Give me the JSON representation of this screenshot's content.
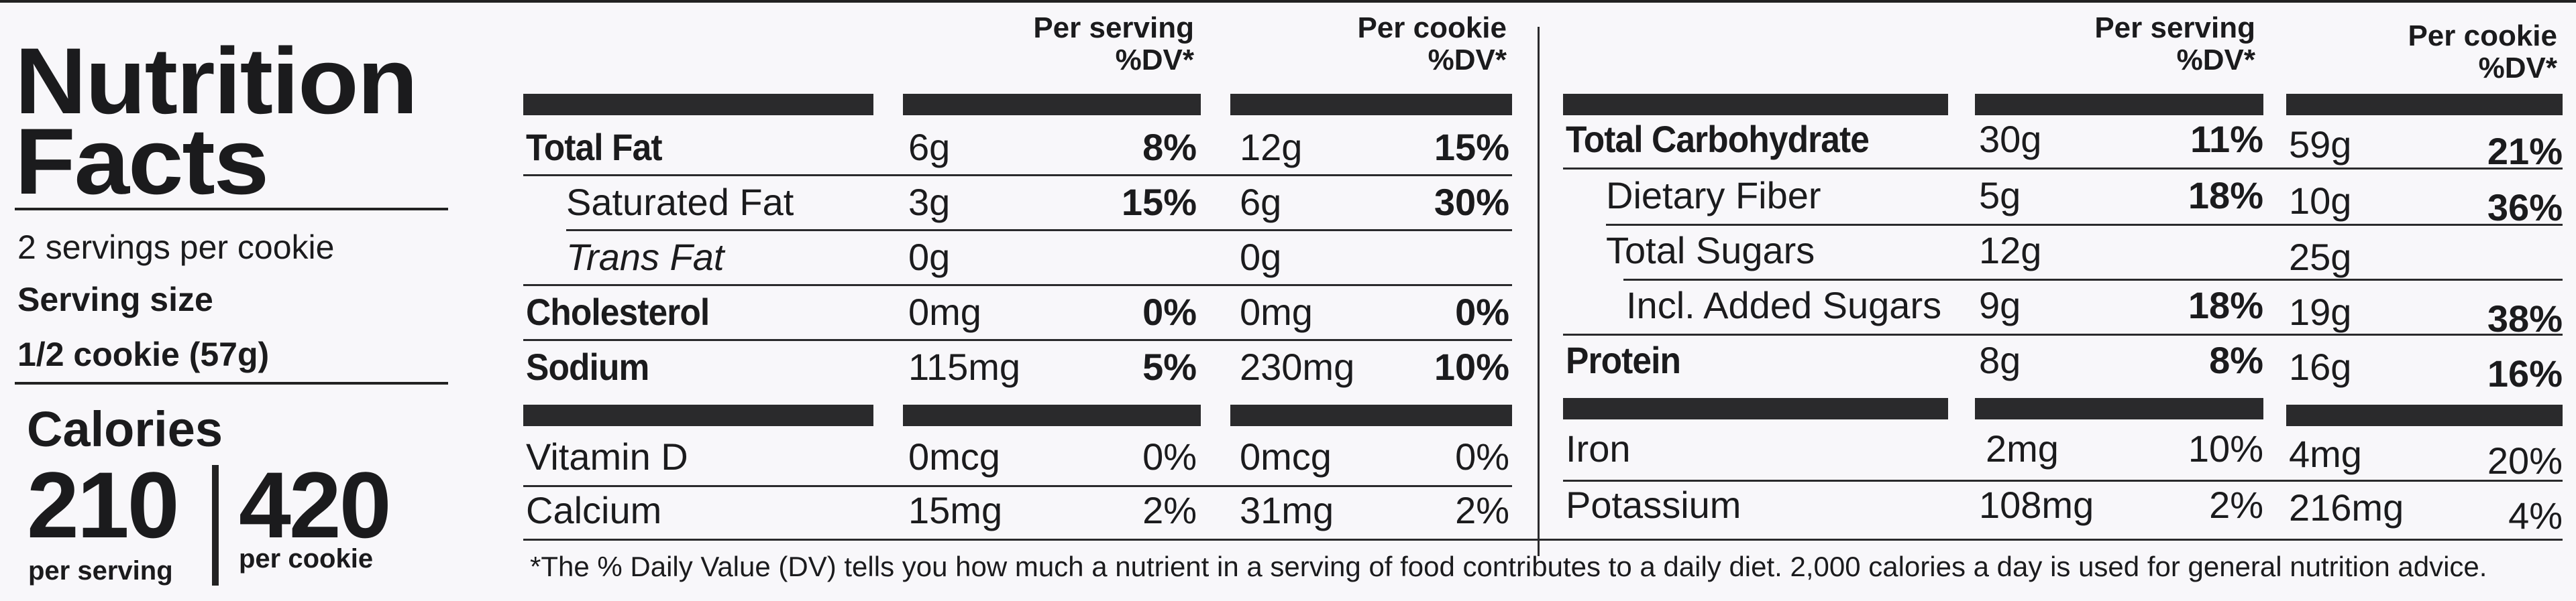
{
  "title": {
    "line1": "Nutrition",
    "line2": "Facts"
  },
  "servings": {
    "per_container": "2 servings per cookie",
    "size_label": "Serving size",
    "size_value": "1/2 cookie (57g)"
  },
  "calories": {
    "label": "Calories",
    "per_serving_value": "210",
    "per_serving_label": "per serving",
    "per_cookie_value": "420",
    "per_cookie_label": "per cookie"
  },
  "headers": {
    "left_serving": [
      "Per serving",
      "%DV*"
    ],
    "left_cookie": [
      "Per cookie",
      "%DV*"
    ],
    "right_serving": [
      "Per serving",
      "%DV*"
    ],
    "right_cookie": [
      "Per cookie",
      "%DV*"
    ]
  },
  "left_rows": [
    {
      "name": "Total Fat",
      "a": "6g",
      "ap": "8%",
      "b": "12g",
      "bp": "15%"
    },
    {
      "name": "Saturated Fat",
      "a": "3g",
      "ap": "15%",
      "b": "6g",
      "bp": "30%"
    },
    {
      "name": "Trans Fat",
      "a": "0g",
      "ap": "",
      "b": "0g",
      "bp": ""
    },
    {
      "name": "Cholesterol",
      "a": "0mg",
      "ap": "0%",
      "b": "0mg",
      "bp": "0%"
    },
    {
      "name": "Sodium",
      "a": "115mg",
      "ap": "5%",
      "b": "230mg",
      "bp": "10%"
    },
    {
      "name": "Vitamin D",
      "a": "0mcg",
      "ap": "0%",
      "b": "0mcg",
      "bp": "0%"
    },
    {
      "name": "Calcium",
      "a": "15mg",
      "ap": "2%",
      "b": "31mg",
      "bp": "2%"
    }
  ],
  "right_rows": [
    {
      "name": "Total Carbohydrate",
      "a": "30g",
      "ap": "11%",
      "b": "59g",
      "bp": "21%"
    },
    {
      "name": "Dietary Fiber",
      "a": "5g",
      "ap": "18%",
      "b": "10g",
      "bp": "36%"
    },
    {
      "name": "Total Sugars",
      "a": "12g",
      "ap": "",
      "b": "25g",
      "bp": ""
    },
    {
      "name": "Incl. Added Sugars",
      "a": "9g",
      "ap": "18%",
      "b": "19g",
      "bp": "38%"
    },
    {
      "name": "Protein",
      "a": "8g",
      "ap": "8%",
      "b": "16g",
      "bp": "16%"
    },
    {
      "name": "Iron",
      "a": "2mg",
      "ap": "10%",
      "b": "4mg",
      "bp": "20%"
    },
    {
      "name": "Potassium",
      "a": "108mg",
      "ap": "2%",
      "b": "216mg",
      "bp": "4%"
    }
  ],
  "footnote": "*The % Daily Value (DV) tells you how much a nutrient in a serving of food contributes to a daily diet. 2,000 calories a day is used for general nutrition advice."
}
